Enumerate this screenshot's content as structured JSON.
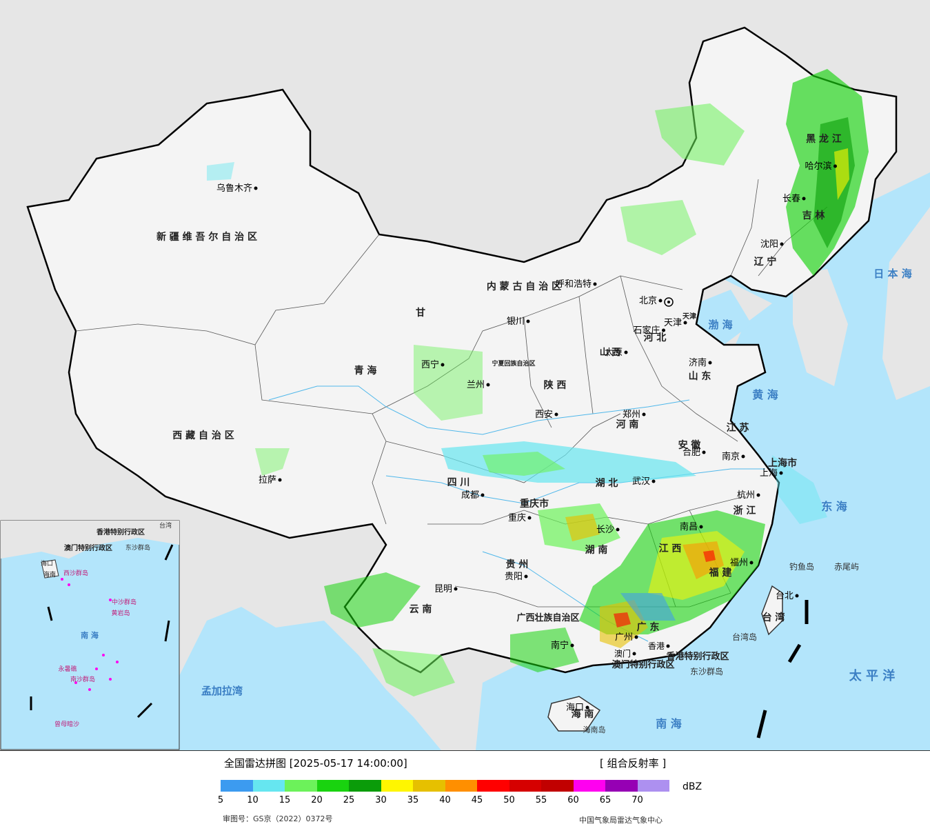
{
  "map": {
    "provinces": [
      {
        "id": "xinjiang",
        "label": "新 疆 维 吾 尔 自 治 区"
      },
      {
        "id": "xizang",
        "label": "西 藏 自 治 区"
      },
      {
        "id": "qinghai",
        "label": "青     海"
      },
      {
        "id": "gansu",
        "label": "甘"
      },
      {
        "id": "sichuan",
        "label": "四   川"
      },
      {
        "id": "yunnan",
        "label": "云   南"
      },
      {
        "id": "guizhou",
        "label": "贵  州"
      },
      {
        "id": "guangxi",
        "label": "广西壮族自治区"
      },
      {
        "id": "neimenggu",
        "label": "内  蒙  古  自  治  区"
      },
      {
        "id": "heilongjiang",
        "label": "黑  龙  江"
      },
      {
        "id": "jilin",
        "label": "吉  林"
      },
      {
        "id": "liaoning",
        "label": "辽  宁"
      },
      {
        "id": "hebei",
        "label": "河  北"
      },
      {
        "id": "shanxi",
        "label": "山 西"
      },
      {
        "id": "shaanxi",
        "label": "陕  西"
      },
      {
        "id": "shandong",
        "label": "山 东"
      },
      {
        "id": "henan",
        "label": "河  南"
      },
      {
        "id": "hubei",
        "label": "湖  北"
      },
      {
        "id": "hunan",
        "label": "湖   南"
      },
      {
        "id": "jiangxi",
        "label": "江  西"
      },
      {
        "id": "anhui",
        "label": "安 徽"
      },
      {
        "id": "jiangsu",
        "label": "江 苏"
      },
      {
        "id": "zhejiang",
        "label": "浙 江"
      },
      {
        "id": "fujian",
        "label": "福 建"
      },
      {
        "id": "guangdong",
        "label": "广 东"
      },
      {
        "id": "hainan",
        "label": "海 南"
      },
      {
        "id": "taiwan",
        "label": "台 湾"
      },
      {
        "id": "shanghai",
        "label": "上海市"
      },
      {
        "id": "chongqing",
        "label": "重庆市"
      },
      {
        "id": "tianjin",
        "label": "天津"
      },
      {
        "id": "ningxia",
        "label": "宁夏回族自治区"
      }
    ],
    "cities": [
      {
        "id": "urumqi",
        "label": "乌鲁木齐"
      },
      {
        "id": "lhasa",
        "label": "拉萨"
      },
      {
        "id": "xining",
        "label": "西宁"
      },
      {
        "id": "lanzhou",
        "label": "兰州"
      },
      {
        "id": "yinchuan",
        "label": "银川"
      },
      {
        "id": "hohhot",
        "label": "呼和浩特"
      },
      {
        "id": "beijing",
        "label": "北京"
      },
      {
        "id": "tianjin-city",
        "label": "天津"
      },
      {
        "id": "shijiazhuang",
        "label": "石家庄"
      },
      {
        "id": "taiyuan",
        "label": "太原"
      },
      {
        "id": "jinan",
        "label": "济南"
      },
      {
        "id": "zhengzhou",
        "label": "郑州"
      },
      {
        "id": "xian",
        "label": "西安"
      },
      {
        "id": "chengdu",
        "label": "成都"
      },
      {
        "id": "chongqing-city",
        "label": "重庆"
      },
      {
        "id": "kunming",
        "label": "昆明"
      },
      {
        "id": "guiyang",
        "label": "贵阳"
      },
      {
        "id": "nanning",
        "label": "南宁"
      },
      {
        "id": "changsha",
        "label": "长沙"
      },
      {
        "id": "wuhan",
        "label": "武汉"
      },
      {
        "id": "hefei",
        "label": "合肥"
      },
      {
        "id": "nanjing",
        "label": "南京"
      },
      {
        "id": "shanghai-city",
        "label": "上海"
      },
      {
        "id": "hangzhou",
        "label": "杭州"
      },
      {
        "id": "nanchang",
        "label": "南昌"
      },
      {
        "id": "fuzhou",
        "label": "福州"
      },
      {
        "id": "guangzhou",
        "label": "广州"
      },
      {
        "id": "haikou",
        "label": "海口"
      },
      {
        "id": "taibei",
        "label": "台北"
      },
      {
        "id": "shenyang",
        "label": "沈阳"
      },
      {
        "id": "changchun",
        "label": "长春"
      },
      {
        "id": "harbin",
        "label": "哈尔滨"
      },
      {
        "id": "hongkong",
        "label": "香港"
      },
      {
        "id": "macau",
        "label": "澳门"
      }
    ],
    "seas": [
      {
        "id": "bohai",
        "label": "渤 海"
      },
      {
        "id": "huanghai",
        "label": "黄 海"
      },
      {
        "id": "donghai",
        "label": "东 海"
      },
      {
        "id": "nanhai",
        "label": "南    海"
      },
      {
        "id": "riben-hai",
        "label": "日 本 海"
      },
      {
        "id": "taipingyang",
        "label": "太  平  洋"
      },
      {
        "id": "mengjiala",
        "label": "孟加拉湾"
      }
    ],
    "islands": [
      {
        "id": "diaoyu",
        "label": "钓鱼岛"
      },
      {
        "id": "chiwei",
        "label": "赤尾屿"
      },
      {
        "id": "taiwan-dao",
        "label": "台湾岛"
      },
      {
        "id": "dongsha",
        "label": "东沙群岛"
      },
      {
        "id": "hainan-dao",
        "label": "海南岛"
      }
    ],
    "sar": [
      {
        "id": "hk-sar",
        "label": "香港特别行政区"
      },
      {
        "id": "macau-sar",
        "label": "澳门特别行政区"
      }
    ],
    "inset": {
      "labels": [
        {
          "id": "inset-nanhai",
          "label": "南    海"
        },
        {
          "id": "inset-hk",
          "label": "香港特别行政区"
        },
        {
          "id": "inset-macau",
          "label": "澳门特别行政区"
        },
        {
          "id": "inset-dongsha",
          "label": "东沙群岛"
        },
        {
          "id": "inset-xisha",
          "label": "西沙群岛"
        },
        {
          "id": "inset-zhongsha",
          "label": "中沙群岛"
        },
        {
          "id": "inset-huangyan",
          "label": "黄岩岛"
        },
        {
          "id": "inset-nansha",
          "label": "南沙群岛"
        },
        {
          "id": "inset-yongshu",
          "label": "永暑礁"
        },
        {
          "id": "inset-zengmu",
          "label": "曾母暗沙"
        },
        {
          "id": "inset-haikou",
          "label": "海口"
        },
        {
          "id": "inset-hainan",
          "label": "海南"
        },
        {
          "id": "inset-taiwan",
          "label": "台湾"
        }
      ]
    }
  },
  "footer": {
    "title": "全国雷达拼图 [2025-05-17 14:00:00]",
    "product": "[ 组合反射率 ]",
    "unit": "dBZ",
    "approval": "审图号：GS京（2022）0372号",
    "org": "中国气象局雷达气象中心",
    "legend": {
      "colors": [
        "#3c9bf0",
        "#66e6f0",
        "#6cf25a",
        "#19d30f",
        "#0a9c09",
        "#fff600",
        "#e6c000",
        "#ff8f00",
        "#ff0000",
        "#d60000",
        "#c10000",
        "#ff00f0",
        "#9600b4",
        "#ad90f0"
      ],
      "ticks": [
        "5",
        "10",
        "15",
        "20",
        "25",
        "30",
        "35",
        "40",
        "45",
        "50",
        "55",
        "60",
        "65",
        "70"
      ]
    }
  }
}
